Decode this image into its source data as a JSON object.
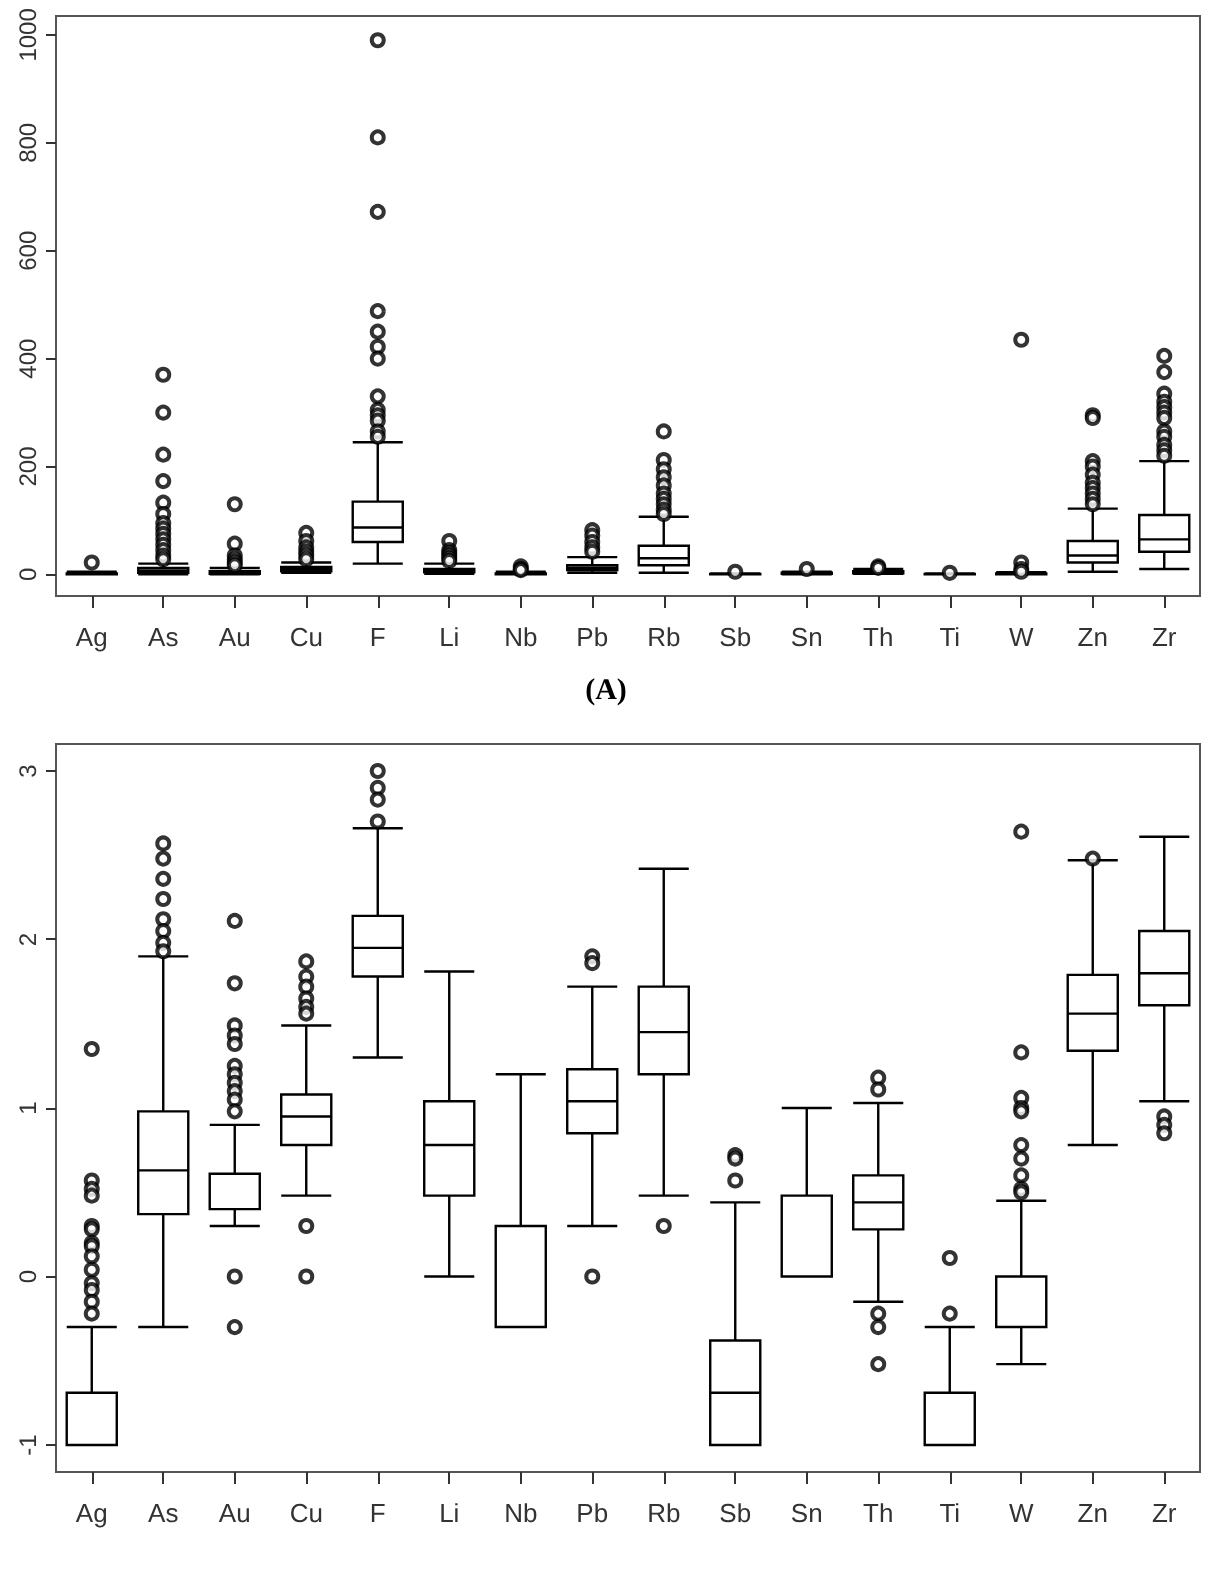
{
  "chart_data": [
    {
      "type": "box",
      "categories": [
        "Ag",
        "As",
        "Au",
        "Cu",
        "F",
        "Li",
        "Nb",
        "Pb",
        "Rb",
        "Sb",
        "Sn",
        "Th",
        "Ti",
        "W",
        "Zn",
        "Zr"
      ],
      "ylim": [
        -40,
        1035
      ],
      "yticks": [
        0,
        200,
        400,
        600,
        800,
        1000
      ],
      "annotations": [
        "(A)"
      ],
      "boxes": [
        {
          "low": 0,
          "q1": 0,
          "median": 0,
          "q3": 2,
          "high": 5,
          "outliers": [
            22
          ]
        },
        {
          "low": 0,
          "q1": 3,
          "median": 7,
          "q3": 12,
          "high": 20,
          "outliers": [
            370,
            300,
            222,
            173,
            133,
            112,
            95,
            85,
            75,
            65,
            55,
            45,
            35,
            28
          ]
        },
        {
          "low": 0,
          "q1": 1,
          "median": 3,
          "q3": 6,
          "high": 12,
          "outliers": [
            130,
            57,
            35,
            28,
            22,
            17
          ]
        },
        {
          "low": 3,
          "q1": 6,
          "median": 10,
          "q3": 14,
          "high": 22,
          "outliers": [
            77,
            62,
            50,
            42,
            35,
            28
          ]
        },
        {
          "low": 20,
          "q1": 60,
          "median": 87,
          "q3": 135,
          "high": 245,
          "outliers": [
            990,
            810,
            672,
            488,
            450,
            422,
            400,
            330,
            305,
            295,
            285,
            265,
            255
          ]
        },
        {
          "low": 1,
          "q1": 4,
          "median": 6,
          "q3": 10,
          "high": 20,
          "outliers": [
            62,
            45,
            40,
            35,
            30,
            25
          ]
        },
        {
          "low": 0,
          "q1": 0,
          "median": 0,
          "q3": 2,
          "high": 5,
          "outliers": [
            15,
            10,
            8
          ]
        },
        {
          "low": 3,
          "q1": 8,
          "median": 12,
          "q3": 17,
          "high": 32,
          "outliers": [
            82,
            72,
            60,
            50,
            42
          ]
        },
        {
          "low": 3,
          "q1": 17,
          "median": 30,
          "q3": 53,
          "high": 107,
          "outliers": [
            265,
            212,
            195,
            180,
            165,
            150,
            140,
            130,
            120,
            112
          ]
        },
        {
          "low": 0,
          "q1": 0,
          "median": 0,
          "q3": 1,
          "high": 2,
          "outliers": [
            5
          ]
        },
        {
          "low": 0,
          "q1": 1,
          "median": 2,
          "q3": 3,
          "high": 5,
          "outliers": [
            10
          ]
        },
        {
          "low": 1,
          "q1": 2,
          "median": 4,
          "q3": 6,
          "high": 10,
          "outliers": [
            15,
            12
          ]
        },
        {
          "low": 0,
          "q1": 0,
          "median": 0,
          "q3": 1,
          "high": 2,
          "outliers": [
            3
          ]
        },
        {
          "low": 0,
          "q1": 0,
          "median": 1,
          "q3": 2,
          "high": 4,
          "outliers": [
            435,
            22,
            10,
            5
          ]
        },
        {
          "low": 5,
          "q1": 22,
          "median": 35,
          "q3": 62,
          "high": 122,
          "outliers": [
            295,
            290,
            210,
            200,
            185,
            170,
            160,
            150,
            140,
            130
          ]
        },
        {
          "low": 10,
          "q1": 42,
          "median": 65,
          "q3": 110,
          "high": 210,
          "outliers": [
            405,
            375,
            335,
            320,
            310,
            300,
            290,
            265,
            255,
            240,
            230,
            220
          ]
        }
      ]
    },
    {
      "type": "box",
      "categories": [
        "Ag",
        "As",
        "Au",
        "Cu",
        "F",
        "Li",
        "Nb",
        "Pb",
        "Rb",
        "Sb",
        "Sn",
        "Th",
        "Ti",
        "W",
        "Zn",
        "Zr"
      ],
      "ylim": [
        -1.16,
        3.16
      ],
      "yticks": [
        -1,
        0,
        1,
        2,
        3
      ],
      "boxes": [
        {
          "low": -1,
          "q1": -1,
          "median": -1,
          "q3": -0.69,
          "high": -0.3,
          "outliers": [
            1.35,
            0.57,
            0.52,
            0.48,
            0.3,
            0.28,
            0.2,
            0.18,
            0.12,
            0.04,
            -0.04,
            -0.08,
            -0.15,
            -0.22
          ]
        },
        {
          "low": -0.3,
          "q1": 0.37,
          "median": 0.63,
          "q3": 0.98,
          "high": 1.9,
          "outliers": [
            2.57,
            2.48,
            2.36,
            2.24,
            2.12,
            2.05,
            1.98,
            1.93
          ]
        },
        {
          "low": 0.3,
          "q1": 0.4,
          "median": 0.4,
          "q3": 0.61,
          "high": 0.9,
          "outliers": [
            2.11,
            1.74,
            1.49,
            1.43,
            1.38,
            1.25,
            1.2,
            1.15,
            1.1,
            1.05,
            0.98,
            0,
            -0.3
          ]
        },
        {
          "low": 0.48,
          "q1": 0.78,
          "median": 0.95,
          "q3": 1.08,
          "high": 1.49,
          "outliers": [
            1.87,
            1.78,
            1.72,
            1.65,
            1.6,
            1.56,
            0.3,
            0
          ]
        },
        {
          "low": 1.3,
          "q1": 1.78,
          "median": 1.95,
          "q3": 2.14,
          "high": 2.66,
          "outliers": [
            3,
            2.9,
            2.83,
            2.7
          ]
        },
        {
          "low": 0,
          "q1": 0.48,
          "median": 0.78,
          "q3": 1.04,
          "high": 1.81
        },
        {
          "low": -0.3,
          "q1": -0.3,
          "median": -0.3,
          "q3": 0.3,
          "high": 1.2
        },
        {
          "low": 0.3,
          "q1": 0.85,
          "median": 1.04,
          "q3": 1.23,
          "high": 1.72,
          "outliers": [
            1.9,
            1.86,
            0
          ]
        },
        {
          "low": 0.48,
          "q1": 1.2,
          "median": 1.45,
          "q3": 1.72,
          "high": 2.42,
          "outliers": [
            0.3
          ]
        },
        {
          "low": -1,
          "q1": -1,
          "median": -0.69,
          "q3": -0.38,
          "high": 0.44,
          "outliers": [
            0.72,
            0.7,
            0.57
          ]
        },
        {
          "low": 0,
          "q1": 0,
          "median": 0,
          "q3": 0.48,
          "high": 1
        },
        {
          "low": -0.15,
          "q1": 0.28,
          "median": 0.44,
          "q3": 0.6,
          "high": 1.03,
          "outliers": [
            1.18,
            1.11,
            -0.22,
            -0.3,
            -0.52
          ]
        },
        {
          "low": -1,
          "q1": -1,
          "median": -1,
          "q3": -0.69,
          "high": -0.3,
          "outliers": [
            0.11,
            -0.22
          ]
        },
        {
          "low": -0.52,
          "q1": -0.3,
          "median": -0.3,
          "q3": 0,
          "high": 0.45,
          "outliers": [
            2.64,
            1.33,
            1.06,
            1,
            0.98,
            0.78,
            0.7,
            0.6,
            0.52,
            0.5
          ]
        },
        {
          "low": 0.78,
          "q1": 1.34,
          "median": 1.56,
          "q3": 1.79,
          "high": 2.47,
          "outliers": [
            2.48
          ]
        },
        {
          "low": 1.04,
          "q1": 1.61,
          "median": 1.8,
          "q3": 2.05,
          "high": 2.61,
          "outliers": [
            0.95,
            0.9,
            0.85
          ]
        }
      ]
    }
  ]
}
